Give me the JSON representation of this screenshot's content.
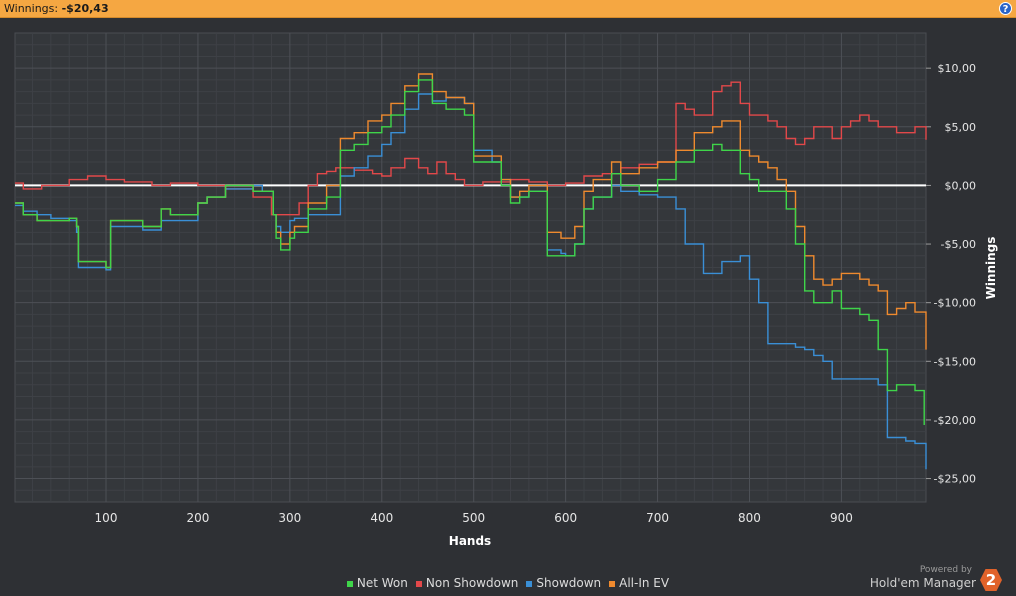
{
  "header": {
    "winnings_label": "Winnings:",
    "winnings_value": "-$20,43",
    "help_glyph": "?"
  },
  "footer": {
    "powered_by": "Powered by",
    "brand": "Hold'em Manager",
    "logo_glyph": "2"
  },
  "chart_data": {
    "type": "line",
    "xlabel": "Hands",
    "ylabel": "Winnings",
    "xlim": [
      1,
      992
    ],
    "ylim": [
      -27,
      13
    ],
    "xticks": [
      100,
      200,
      300,
      400,
      500,
      600,
      700,
      800,
      900
    ],
    "xtick_labels": [
      "100",
      "200",
      "300",
      "400",
      "500",
      "600",
      "700",
      "800",
      "900"
    ],
    "yticks": [
      10,
      5,
      0,
      -5,
      -10,
      -15,
      -20,
      -25
    ],
    "ytick_labels": [
      "$10,00",
      "$5,00",
      "$0,00",
      "-$5,00",
      "-$10,00",
      "-$15,00",
      "-$20,00",
      "-$25,00"
    ],
    "grid": true,
    "legend_position": "bottom-center",
    "series": [
      {
        "name": "Net Won",
        "color": "#3fd54a",
        "x": [
          1,
          10,
          25,
          40,
          60,
          68,
          70,
          100,
          105,
          140,
          160,
          170,
          200,
          210,
          230,
          260,
          270,
          282,
          285,
          290,
          300,
          305,
          320,
          340,
          355,
          370,
          385,
          400,
          410,
          425,
          440,
          455,
          470,
          490,
          500,
          520,
          530,
          540,
          550,
          560,
          580,
          595,
          600,
          610,
          620,
          630,
          650,
          660,
          680,
          700,
          720,
          740,
          760,
          770,
          790,
          800,
          810,
          820,
          840,
          850,
          860,
          870,
          880,
          890,
          900,
          920,
          930,
          940,
          950,
          960,
          970,
          980,
          990
        ],
        "y": [
          -1.5,
          -2.5,
          -3.0,
          -3.0,
          -2.8,
          -3.5,
          -6.5,
          -7.0,
          -3.0,
          -3.5,
          -2.0,
          -2.5,
          -1.5,
          -1.0,
          0.0,
          -0.5,
          -0.5,
          -2.5,
          -4.5,
          -5.5,
          -4.5,
          -4.0,
          -2.0,
          -1.0,
          3.0,
          3.5,
          4.5,
          5.0,
          6.0,
          8.0,
          9.0,
          7.0,
          6.5,
          6.0,
          2.0,
          2.0,
          0.0,
          -1.5,
          -1.0,
          -0.5,
          -6.0,
          -6.0,
          -6.0,
          -5.0,
          -2.0,
          -1.0,
          1.0,
          0.0,
          -0.5,
          0.5,
          2.0,
          3.0,
          3.5,
          3.0,
          1.0,
          0.5,
          -0.5,
          -0.5,
          -2.0,
          -5.0,
          -9.0,
          -10.0,
          -10.0,
          -9.0,
          -10.5,
          -11.0,
          -11.5,
          -14.0,
          -17.5,
          -17.0,
          -17.0,
          -17.5,
          -20.43
        ]
      },
      {
        "name": "Non Showdown",
        "color": "#e2484a",
        "x": [
          1,
          10,
          30,
          60,
          80,
          100,
          120,
          150,
          170,
          200,
          230,
          260,
          280,
          300,
          310,
          320,
          330,
          340,
          350,
          370,
          390,
          400,
          410,
          425,
          440,
          450,
          460,
          470,
          480,
          490,
          500,
          510,
          520,
          540,
          560,
          580,
          600,
          620,
          640,
          660,
          680,
          700,
          720,
          730,
          740,
          760,
          770,
          780,
          790,
          800,
          810,
          820,
          830,
          840,
          850,
          860,
          870,
          880,
          890,
          900,
          910,
          920,
          930,
          940,
          950,
          960,
          970,
          980,
          992
        ],
        "y": [
          0.2,
          -0.3,
          0.0,
          0.5,
          0.8,
          0.5,
          0.3,
          0.0,
          0.2,
          0.0,
          -0.3,
          -1.0,
          -2.5,
          -2.5,
          -1.5,
          0.0,
          1.0,
          1.2,
          1.5,
          1.3,
          1.0,
          0.8,
          1.5,
          2.3,
          1.5,
          1.0,
          2.0,
          1.0,
          0.5,
          0.0,
          0.0,
          0.3,
          0.3,
          0.5,
          0.3,
          0.0,
          0.2,
          0.8,
          1.0,
          1.5,
          1.8,
          2.0,
          7.0,
          6.5,
          6.0,
          8.0,
          8.5,
          8.8,
          7.0,
          6.0,
          6.0,
          5.5,
          5.0,
          4.0,
          3.5,
          4.0,
          5.0,
          5.0,
          4.0,
          5.0,
          5.5,
          6.0,
          5.5,
          5.0,
          5.0,
          4.5,
          4.5,
          5.0,
          3.9
        ]
      },
      {
        "name": "Showdown",
        "color": "#3a8fd6",
        "x": [
          1,
          10,
          25,
          40,
          60,
          68,
          70,
          100,
          105,
          140,
          160,
          170,
          200,
          210,
          230,
          260,
          270,
          282,
          285,
          290,
          300,
          305,
          320,
          340,
          355,
          370,
          385,
          400,
          410,
          425,
          440,
          455,
          470,
          490,
          500,
          520,
          530,
          540,
          550,
          560,
          580,
          595,
          600,
          610,
          620,
          630,
          650,
          660,
          680,
          700,
          720,
          730,
          750,
          770,
          790,
          800,
          810,
          820,
          830,
          840,
          850,
          860,
          870,
          880,
          890,
          900,
          920,
          940,
          950,
          960,
          970,
          980,
          992
        ],
        "y": [
          -1.7,
          -2.2,
          -2.5,
          -2.8,
          -3.0,
          -4.0,
          -7.0,
          -7.2,
          -3.5,
          -3.8,
          -3.0,
          -3.0,
          -1.5,
          -1.0,
          -0.3,
          0.0,
          -0.5,
          -2.5,
          -3.5,
          -4.0,
          -3.0,
          -2.8,
          -2.5,
          -2.5,
          0.8,
          1.5,
          2.5,
          3.5,
          4.5,
          6.5,
          7.8,
          7.2,
          7.5,
          7.0,
          3.0,
          2.0,
          0.5,
          -1.0,
          -1.0,
          -0.5,
          -5.5,
          -5.8,
          -6.0,
          -5.0,
          -2.0,
          -1.0,
          0.0,
          -0.5,
          -0.8,
          -1.0,
          -2.0,
          -5.0,
          -7.5,
          -6.5,
          -6.0,
          -8.0,
          -10.0,
          -13.5,
          -13.5,
          -13.5,
          -13.8,
          -14.0,
          -14.5,
          -15.0,
          -16.5,
          -16.5,
          -16.5,
          -17.0,
          -21.5,
          -21.5,
          -21.8,
          -22.0,
          -24.2
        ]
      },
      {
        "name": "All-In EV",
        "color": "#ef8a2e",
        "x": [
          1,
          10,
          25,
          40,
          60,
          68,
          70,
          100,
          105,
          140,
          160,
          170,
          200,
          210,
          230,
          260,
          270,
          282,
          285,
          290,
          300,
          305,
          320,
          340,
          355,
          370,
          385,
          400,
          410,
          425,
          440,
          455,
          470,
          490,
          500,
          520,
          530,
          540,
          550,
          560,
          580,
          595,
          600,
          610,
          620,
          630,
          650,
          660,
          680,
          700,
          720,
          740,
          760,
          770,
          790,
          800,
          810,
          820,
          830,
          840,
          850,
          860,
          870,
          880,
          890,
          900,
          920,
          930,
          940,
          950,
          960,
          970,
          980,
          992
        ],
        "y": [
          -1.5,
          -2.5,
          -3.0,
          -3.0,
          -2.8,
          -3.5,
          -6.5,
          -7.0,
          -3.0,
          -3.5,
          -2.0,
          -2.5,
          -1.5,
          -1.0,
          0.0,
          -0.5,
          -0.5,
          -2.5,
          -4.0,
          -5.0,
          -4.0,
          -3.5,
          -1.5,
          0.0,
          4.0,
          4.5,
          5.5,
          6.0,
          7.0,
          8.5,
          9.5,
          8.0,
          7.5,
          7.0,
          2.5,
          2.5,
          0.5,
          -1.0,
          -0.5,
          0.0,
          -4.0,
          -4.5,
          -4.5,
          -3.5,
          -0.5,
          0.5,
          2.0,
          1.0,
          1.5,
          2.0,
          3.0,
          4.5,
          5.0,
          5.5,
          3.0,
          2.5,
          2.0,
          1.5,
          0.5,
          -0.5,
          -3.5,
          -6.0,
          -8.0,
          -8.5,
          -8.0,
          -7.5,
          -8.0,
          -8.5,
          -9.0,
          -11.0,
          -10.5,
          -10.0,
          -10.8,
          -14.0
        ]
      }
    ]
  }
}
